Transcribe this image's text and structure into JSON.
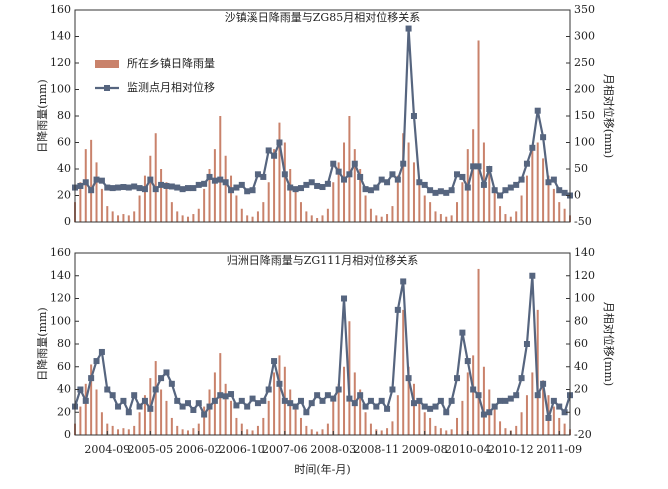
{
  "chart_data": [
    {
      "type": "bar",
      "title": "沙镇溪日降雨量与ZG85月相对位移关系",
      "ylabel": "日降雨量(mm)",
      "y2label": "月相对位移(mm)",
      "legend": "upper left",
      "xlim": [
        "2004-03",
        "2011-11"
      ],
      "x": [
        "2004-03",
        "2004-04",
        "2004-05",
        "2004-06",
        "2004-07",
        "2004-08",
        "2004-09",
        "2004-10",
        "2004-11",
        "2004-12",
        "2005-01",
        "2005-02",
        "2005-03",
        "2005-04",
        "2005-05",
        "2005-06",
        "2005-07",
        "2005-08",
        "2005-09",
        "2005-10",
        "2005-11",
        "2005-12",
        "2006-01",
        "2006-02",
        "2006-03",
        "2006-04",
        "2006-05",
        "2006-06",
        "2006-07",
        "2006-08",
        "2006-09",
        "2006-10",
        "2006-11",
        "2006-12",
        "2007-01",
        "2007-02",
        "2007-03",
        "2007-04",
        "2007-05",
        "2007-06",
        "2007-07",
        "2007-08",
        "2007-09",
        "2007-10",
        "2007-11",
        "2007-12",
        "2008-01",
        "2008-02",
        "2008-03",
        "2008-04",
        "2008-05",
        "2008-06",
        "2008-07",
        "2008-08",
        "2008-09",
        "2008-10",
        "2008-11",
        "2008-12",
        "2009-01",
        "2009-02",
        "2009-03",
        "2009-04",
        "2009-05",
        "2009-06",
        "2009-07",
        "2009-08",
        "2009-09",
        "2009-10",
        "2009-11",
        "2009-12",
        "2010-01",
        "2010-02",
        "2010-03",
        "2010-04",
        "2010-05",
        "2010-06",
        "2010-07",
        "2010-08",
        "2010-09",
        "2010-10",
        "2010-11",
        "2010-12",
        "2011-01",
        "2011-02",
        "2011-03",
        "2011-04",
        "2011-05",
        "2011-06",
        "2011-07",
        "2011-08",
        "2011-09",
        "2011-10",
        "2011-11"
      ],
      "ylim": [
        0,
        160
      ],
      "yticks": [
        0,
        20,
        40,
        60,
        80,
        100,
        120,
        140,
        160
      ],
      "y2lim": [
        -50,
        350
      ],
      "y2ticks": [
        -50,
        0,
        50,
        100,
        150,
        200,
        250,
        300,
        350
      ],
      "series": [
        {
          "name": "所在乡镇日降雨量",
          "type": "bar",
          "color": "#c9826b",
          "values": [
            15,
            30,
            55,
            62,
            45,
            25,
            12,
            8,
            5,
            6,
            5,
            8,
            20,
            35,
            50,
            67,
            40,
            30,
            15,
            8,
            5,
            4,
            6,
            10,
            25,
            40,
            55,
            80,
            50,
            35,
            20,
            10,
            5,
            4,
            8,
            15,
            30,
            55,
            75,
            60,
            40,
            25,
            15,
            8,
            5,
            3,
            5,
            10,
            30,
            45,
            60,
            80,
            55,
            40,
            20,
            10,
            5,
            4,
            6,
            12,
            35,
            67,
            60,
            45,
            30,
            20,
            15,
            8,
            6,
            4,
            5,
            15,
            30,
            55,
            70,
            137,
            60,
            40,
            25,
            12,
            6,
            4,
            8,
            20,
            35,
            55,
            60,
            48,
            35,
            25,
            15,
            10,
            5
          ]
        },
        {
          "name": "监测点月相对位移",
          "type": "line",
          "axis": "y2",
          "color": "#56657f",
          "values": [
            15,
            18,
            25,
            10,
            30,
            28,
            15,
            14,
            15,
            16,
            15,
            17,
            14,
            12,
            30,
            12,
            20,
            18,
            17,
            15,
            12,
            14,
            14,
            20,
            22,
            35,
            28,
            30,
            25,
            10,
            15,
            20,
            8,
            10,
            40,
            35,
            85,
            75,
            100,
            40,
            15,
            12,
            14,
            20,
            25,
            18,
            16,
            22,
            60,
            45,
            30,
            40,
            60,
            35,
            12,
            10,
            15,
            30,
            25,
            40,
            30,
            60,
            315,
            150,
            25,
            20,
            10,
            5,
            8,
            5,
            10,
            40,
            35,
            15,
            55,
            55,
            20,
            50,
            10,
            0,
            10,
            15,
            20,
            30,
            60,
            90,
            160,
            110,
            25,
            30,
            10,
            5,
            0
          ]
        }
      ]
    },
    {
      "type": "bar",
      "title": "归洲日降雨量与ZG111月相对位移关系",
      "ylabel": "日降雨量(mm)",
      "y2label": "月相对位移(mm)",
      "xlabel": "时间(年-月)",
      "xlim": [
        "2004-03",
        "2011-11"
      ],
      "xticks": [
        "2004-09",
        "2005-05",
        "2006-02",
        "2006-10",
        "2007-06",
        "2008-03",
        "2008-11",
        "2009-08",
        "2010-04",
        "2010-12",
        "2011-09"
      ],
      "x": [
        "2004-03",
        "2004-04",
        "2004-05",
        "2004-06",
        "2004-07",
        "2004-08",
        "2004-09",
        "2004-10",
        "2004-11",
        "2004-12",
        "2005-01",
        "2005-02",
        "2005-03",
        "2005-04",
        "2005-05",
        "2005-06",
        "2005-07",
        "2005-08",
        "2005-09",
        "2005-10",
        "2005-11",
        "2005-12",
        "2006-01",
        "2006-02",
        "2006-03",
        "2006-04",
        "2006-05",
        "2006-06",
        "2006-07",
        "2006-08",
        "2006-09",
        "2006-10",
        "2006-11",
        "2006-12",
        "2007-01",
        "2007-02",
        "2007-03",
        "2007-04",
        "2007-05",
        "2007-06",
        "2007-07",
        "2007-08",
        "2007-09",
        "2007-10",
        "2007-11",
        "2007-12",
        "2008-01",
        "2008-02",
        "2008-03",
        "2008-04",
        "2008-05",
        "2008-06",
        "2008-07",
        "2008-08",
        "2008-09",
        "2008-10",
        "2008-11",
        "2008-12",
        "2009-01",
        "2009-02",
        "2009-03",
        "2009-04",
        "2009-05",
        "2009-06",
        "2009-07",
        "2009-08",
        "2009-09",
        "2009-10",
        "2009-11",
        "2009-12",
        "2010-01",
        "2010-02",
        "2010-03",
        "2010-04",
        "2010-05",
        "2010-06",
        "2010-07",
        "2010-08",
        "2010-09",
        "2010-10",
        "2010-11",
        "2010-12",
        "2011-01",
        "2011-02",
        "2011-03",
        "2011-04",
        "2011-05",
        "2011-06",
        "2011-07",
        "2011-08",
        "2011-09",
        "2011-10",
        "2011-11"
      ],
      "ylim": [
        0,
        160
      ],
      "yticks": [
        0,
        20,
        40,
        60,
        80,
        100,
        120,
        140,
        160
      ],
      "y2lim": [
        -20,
        140
      ],
      "y2ticks": [
        -20,
        0,
        20,
        40,
        60,
        80,
        100,
        120,
        140
      ],
      "series": [
        {
          "name": "所在乡镇日降雨量",
          "type": "bar",
          "color": "#c9826b",
          "values": [
            10,
            25,
            45,
            62,
            40,
            20,
            10,
            8,
            5,
            6,
            5,
            8,
            20,
            35,
            50,
            65,
            40,
            30,
            15,
            8,
            5,
            4,
            6,
            10,
            25,
            40,
            55,
            72,
            45,
            30,
            15,
            10,
            5,
            4,
            8,
            15,
            30,
            55,
            70,
            60,
            40,
            25,
            15,
            8,
            5,
            3,
            5,
            10,
            30,
            45,
            60,
            100,
            55,
            40,
            20,
            10,
            5,
            4,
            6,
            12,
            35,
            110,
            60,
            45,
            30,
            20,
            15,
            8,
            6,
            4,
            5,
            15,
            30,
            55,
            70,
            146,
            60,
            40,
            25,
            12,
            6,
            4,
            8,
            20,
            35,
            55,
            110,
            48,
            35,
            25,
            15,
            10,
            5
          ]
        },
        {
          "name": "监测点月相对位移",
          "type": "line",
          "axis": "y2",
          "color": "#56657f",
          "values": [
            5,
            20,
            10,
            30,
            45,
            53,
            20,
            15,
            5,
            10,
            0,
            15,
            5,
            10,
            3,
            20,
            30,
            35,
            25,
            10,
            5,
            8,
            2,
            8,
            -2,
            5,
            10,
            15,
            14,
            16,
            6,
            10,
            5,
            12,
            8,
            10,
            20,
            45,
            25,
            10,
            8,
            5,
            10,
            0,
            8,
            15,
            10,
            15,
            12,
            20,
            100,
            12,
            8,
            15,
            5,
            10,
            5,
            10,
            3,
            20,
            90,
            115,
            30,
            8,
            10,
            5,
            3,
            5,
            10,
            0,
            10,
            30,
            70,
            45,
            20,
            15,
            -2,
            0,
            5,
            10,
            10,
            12,
            15,
            30,
            60,
            120,
            15,
            25,
            -5,
            10,
            5,
            0,
            15
          ]
        }
      ]
    }
  ]
}
